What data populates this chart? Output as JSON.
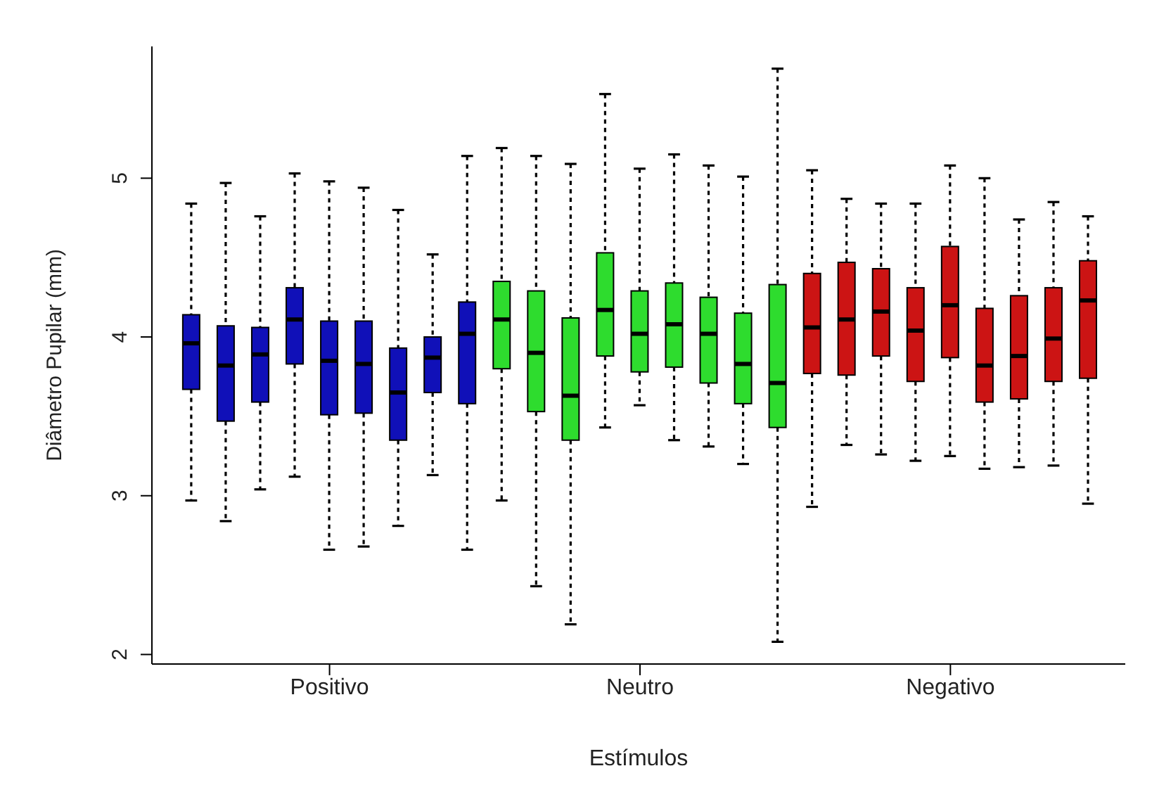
{
  "chart_data": {
    "type": "box",
    "xlabel": "Estímulos",
    "ylabel": "Diâmetro Pupilar (mm)",
    "categories": [
      null,
      null,
      null,
      null,
      "Positivo",
      null,
      null,
      null,
      null,
      null,
      null,
      null,
      null,
      "Neutro",
      null,
      null,
      null,
      null,
      null,
      null,
      null,
      null,
      "Negativo",
      null,
      null,
      null,
      null
    ],
    "colors": [
      "#1010b8",
      "#1010b8",
      "#1010b8",
      "#1010b8",
      "#1010b8",
      "#1010b8",
      "#1010b8",
      "#1010b8",
      "#1010b8",
      "#2edc2e",
      "#2edc2e",
      "#2edc2e",
      "#2edc2e",
      "#2edc2e",
      "#2edc2e",
      "#2edc2e",
      "#2edc2e",
      "#2edc2e",
      "#cc1414",
      "#cc1414",
      "#cc1414",
      "#cc1414",
      "#cc1414",
      "#cc1414",
      "#cc1414",
      "#cc1414",
      "#cc1414"
    ],
    "boxes": [
      {
        "low": 2.97,
        "q1": 3.67,
        "median": 3.96,
        "q3": 4.14,
        "high": 4.84
      },
      {
        "low": 2.84,
        "q1": 3.47,
        "median": 3.82,
        "q3": 4.07,
        "high": 4.97
      },
      {
        "low": 3.04,
        "q1": 3.59,
        "median": 3.89,
        "q3": 4.06,
        "high": 4.76
      },
      {
        "low": 3.12,
        "q1": 3.83,
        "median": 4.11,
        "q3": 4.31,
        "high": 5.03
      },
      {
        "low": 2.66,
        "q1": 3.51,
        "median": 3.85,
        "q3": 4.1,
        "high": 4.98
      },
      {
        "low": 2.68,
        "q1": 3.52,
        "median": 3.83,
        "q3": 4.1,
        "high": 4.94
      },
      {
        "low": 2.81,
        "q1": 3.35,
        "median": 3.65,
        "q3": 3.93,
        "high": 4.8
      },
      {
        "low": 3.13,
        "q1": 3.65,
        "median": 3.87,
        "q3": 4.0,
        "high": 4.52
      },
      {
        "low": 2.66,
        "q1": 3.58,
        "median": 4.02,
        "q3": 4.22,
        "high": 5.14
      },
      {
        "low": 2.97,
        "q1": 3.8,
        "median": 4.11,
        "q3": 4.35,
        "high": 5.19
      },
      {
        "low": 2.43,
        "q1": 3.53,
        "median": 3.9,
        "q3": 4.29,
        "high": 5.14
      },
      {
        "low": 2.19,
        "q1": 3.35,
        "median": 3.63,
        "q3": 4.12,
        "high": 5.09
      },
      {
        "low": 3.43,
        "q1": 3.88,
        "median": 4.17,
        "q3": 4.53,
        "high": 5.53
      },
      {
        "low": 3.57,
        "q1": 3.78,
        "median": 4.02,
        "q3": 4.29,
        "high": 5.06
      },
      {
        "low": 3.35,
        "q1": 3.81,
        "median": 4.08,
        "q3": 4.34,
        "high": 5.15
      },
      {
        "low": 3.31,
        "q1": 3.71,
        "median": 4.02,
        "q3": 4.25,
        "high": 5.08
      },
      {
        "low": 3.2,
        "q1": 3.58,
        "median": 3.83,
        "q3": 4.15,
        "high": 5.01
      },
      {
        "low": 2.08,
        "q1": 3.43,
        "median": 3.71,
        "q3": 4.33,
        "high": 5.69
      },
      {
        "low": 2.93,
        "q1": 3.77,
        "median": 4.06,
        "q3": 4.4,
        "high": 5.05
      },
      {
        "low": 3.32,
        "q1": 3.76,
        "median": 4.11,
        "q3": 4.47,
        "high": 4.87
      },
      {
        "low": 3.26,
        "q1": 3.88,
        "median": 4.16,
        "q3": 4.43,
        "high": 4.84
      },
      {
        "low": 3.22,
        "q1": 3.72,
        "median": 4.04,
        "q3": 4.31,
        "high": 4.84
      },
      {
        "low": 3.25,
        "q1": 3.87,
        "median": 4.2,
        "q3": 4.57,
        "high": 5.08
      },
      {
        "low": 3.17,
        "q1": 3.59,
        "median": 3.82,
        "q3": 4.18,
        "high": 5.0
      },
      {
        "low": 3.18,
        "q1": 3.61,
        "median": 3.88,
        "q3": 4.26,
        "high": 4.74
      },
      {
        "low": 3.19,
        "q1": 3.72,
        "median": 3.99,
        "q3": 4.31,
        "high": 4.85
      },
      {
        "low": 2.95,
        "q1": 3.74,
        "median": 4.23,
        "q3": 4.48,
        "high": 4.76
      }
    ],
    "ylim": [
      1.94,
      5.83
    ],
    "yticks": [
      2,
      3,
      4,
      5
    ],
    "grid": false,
    "legend": false
  }
}
